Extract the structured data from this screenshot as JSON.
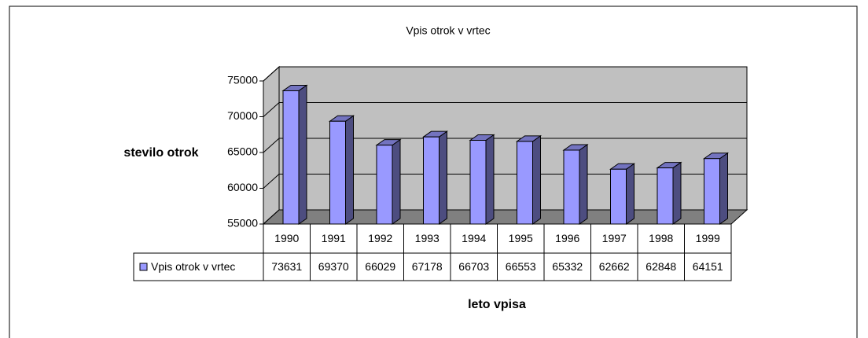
{
  "chart_data": {
    "type": "bar3d",
    "title": "Vpis otrok v vrtec",
    "y_label": "stevilo otrok",
    "x_label": "leto vpisa",
    "categories": [
      "1990",
      "1991",
      "1992",
      "1993",
      "1994",
      "1995",
      "1996",
      "1997",
      "1998",
      "1999"
    ],
    "series": [
      {
        "name": "Vpis otrok v vrtec",
        "color": "#9999ff",
        "values": [
          73631,
          69370,
          66029,
          67178,
          66703,
          66553,
          65332,
          62662,
          62848,
          64151
        ]
      }
    ],
    "ylim": [
      55000,
      75000
    ],
    "yticks": [
      55000,
      60000,
      65000,
      70000,
      75000
    ],
    "grid": true
  }
}
